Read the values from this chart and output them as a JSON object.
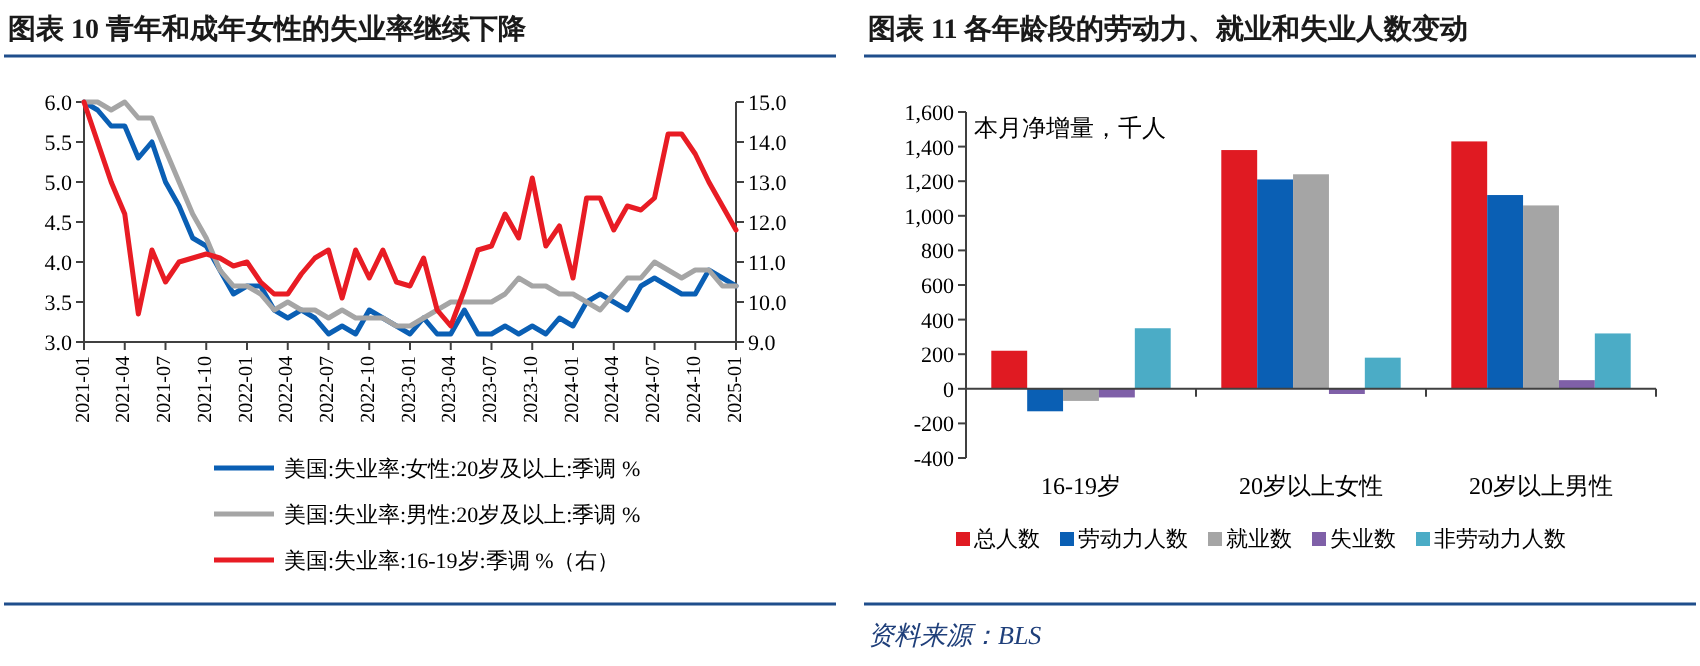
{
  "chart_data": [
    {
      "type": "line",
      "title": "图表 10  青年和成年女性的失业率继续下降",
      "x": [
        "2021-01",
        "2021-02",
        "2021-03",
        "2021-04",
        "2021-05",
        "2021-06",
        "2021-07",
        "2021-08",
        "2021-09",
        "2021-10",
        "2021-11",
        "2021-12",
        "2022-01",
        "2022-02",
        "2022-03",
        "2022-04",
        "2022-05",
        "2022-06",
        "2022-07",
        "2022-08",
        "2022-09",
        "2022-10",
        "2022-11",
        "2022-12",
        "2023-01",
        "2023-02",
        "2023-03",
        "2023-04",
        "2023-05",
        "2023-06",
        "2023-07",
        "2023-08",
        "2023-09",
        "2023-10",
        "2023-11",
        "2023-12",
        "2024-01",
        "2024-02",
        "2024-03",
        "2024-04",
        "2024-05",
        "2024-06",
        "2024-07",
        "2024-08",
        "2024-09",
        "2024-10",
        "2024-11",
        "2024-12",
        "2025-01"
      ],
      "series": [
        {
          "name": "美国:失业率:女性:20岁及以上:季调 %",
          "color": "#0a5fb4",
          "values": [
            6.0,
            5.9,
            5.7,
            5.7,
            5.3,
            5.5,
            5.0,
            4.7,
            4.3,
            4.2,
            3.9,
            3.6,
            3.7,
            3.7,
            3.4,
            3.3,
            3.4,
            3.3,
            3.1,
            3.2,
            3.1,
            3.4,
            3.3,
            3.2,
            3.1,
            3.3,
            3.1,
            3.1,
            3.4,
            3.1,
            3.1,
            3.2,
            3.1,
            3.2,
            3.1,
            3.3,
            3.2,
            3.5,
            3.6,
            3.5,
            3.4,
            3.7,
            3.8,
            3.7,
            3.6,
            3.6,
            3.9,
            3.8,
            3.7
          ]
        },
        {
          "name": "美国:失业率:男性:20岁及以上:季调 %",
          "color": "#a5a5a5",
          "values": [
            6.0,
            6.0,
            5.9,
            6.0,
            5.8,
            5.8,
            5.4,
            5.0,
            4.6,
            4.3,
            3.9,
            3.7,
            3.7,
            3.6,
            3.4,
            3.5,
            3.4,
            3.4,
            3.3,
            3.4,
            3.3,
            3.3,
            3.3,
            3.2,
            3.2,
            3.3,
            3.4,
            3.5,
            3.5,
            3.5,
            3.5,
            3.6,
            3.8,
            3.7,
            3.7,
            3.6,
            3.6,
            3.5,
            3.4,
            3.6,
            3.8,
            3.8,
            4.0,
            3.9,
            3.8,
            3.9,
            3.9,
            3.7,
            3.7
          ]
        },
        {
          "name": "美国:失业率:16-19岁:季调 %（右）",
          "color": "#e81c24",
          "axis": "y2",
          "values": [
            15.0,
            14.0,
            13.0,
            12.2,
            9.7,
            11.3,
            10.5,
            11.0,
            11.1,
            11.2,
            11.1,
            10.9,
            11.0,
            10.5,
            10.2,
            10.2,
            10.7,
            11.1,
            11.3,
            10.1,
            11.3,
            10.6,
            11.3,
            10.5,
            10.4,
            11.1,
            9.8,
            9.4,
            10.3,
            11.3,
            11.4,
            12.2,
            11.6,
            13.1,
            11.4,
            11.9,
            10.6,
            12.6,
            12.6,
            11.8,
            12.4,
            12.3,
            12.6,
            14.2,
            14.2,
            13.7,
            13.0,
            12.4,
            11.8
          ]
        }
      ],
      "xlim": [
        "2021-01",
        "2025-01"
      ],
      "xticks": [
        "2021-01",
        "2021-04",
        "2021-07",
        "2021-10",
        "2022-01",
        "2022-04",
        "2022-07",
        "2022-10",
        "2023-01",
        "2023-04",
        "2023-07",
        "2023-10",
        "2024-01",
        "2024-04",
        "2024-07",
        "2024-10",
        "2025-01"
      ],
      "ylim": [
        3,
        6
      ],
      "yticks": [
        {
          "value": 3,
          "label": "3.0"
        },
        {
          "value": 3.5,
          "label": "3.5"
        },
        {
          "value": 4,
          "label": "4.0"
        },
        {
          "value": 4.5,
          "label": "4.5"
        },
        {
          "value": 5,
          "label": "5.0"
        },
        {
          "value": 5.5,
          "label": "5.5"
        },
        {
          "value": 6,
          "label": "6.0"
        }
      ],
      "y2lim": [
        9,
        15
      ],
      "y2ticks": [
        {
          "value": 9,
          "label": "9.0"
        },
        {
          "value": 10,
          "label": "10.0"
        },
        {
          "value": 11,
          "label": "11.0"
        },
        {
          "value": 12,
          "label": "12.0"
        },
        {
          "value": 13,
          "label": "13.0"
        },
        {
          "value": 14,
          "label": "14.0"
        },
        {
          "value": 15,
          "label": "15.0"
        }
      ],
      "legend": "bottom"
    },
    {
      "type": "bar",
      "title": "图表 11  各年龄段的劳动力、就业和失业人数变动",
      "categories": [
        "16-19岁",
        "20岁以上女性",
        "20岁以上男性"
      ],
      "series": [
        {
          "name": "总人数",
          "color": "#e01a22",
          "values": [
            220,
            1380,
            1430
          ]
        },
        {
          "name": "劳动力人数",
          "color": "#0a5fb4",
          "values": [
            -130,
            1210,
            1120
          ]
        },
        {
          "name": "就业数",
          "color": "#a5a5a5",
          "values": [
            -70,
            1240,
            1060
          ]
        },
        {
          "name": "失业数",
          "color": "#7f60a8",
          "values": [
            -50,
            -30,
            50
          ]
        },
        {
          "name": "非劳动力人数",
          "color": "#4bacc6",
          "values": [
            350,
            180,
            320
          ]
        }
      ],
      "ylim": [
        -400,
        1600
      ],
      "yticks": [
        -400,
        -200,
        0,
        200,
        400,
        600,
        800,
        {
          "value": 1000,
          "label": "1,000"
        },
        {
          "value": 1200,
          "label": "1,200"
        },
        {
          "value": 1400,
          "label": "1,400"
        },
        {
          "value": 1600,
          "label": "1,600"
        }
      ],
      "annotations": [
        "本月净增量，千人",
        "资料来源：BLS"
      ],
      "legend": "bottom"
    }
  ]
}
